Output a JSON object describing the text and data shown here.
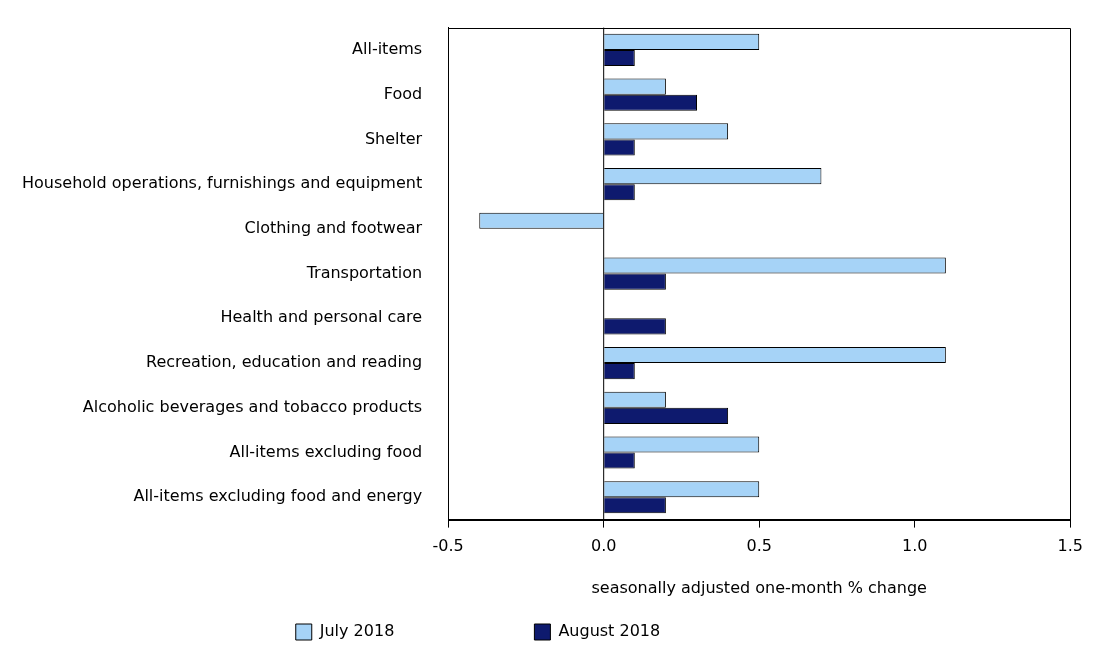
{
  "chart_data": {
    "type": "bar",
    "orientation": "horizontal",
    "xlabel": "seasonally adjusted one-month % change",
    "categories": [
      "All-items",
      "Food",
      "Shelter",
      "Household operations, furnishings and equipment",
      "Clothing and footwear",
      "Transportation",
      "Health and personal care",
      "Recreation, education and reading",
      "Alcoholic beverages and tobacco products",
      "All-items excluding food",
      "All-items excluding food and energy"
    ],
    "series": [
      {
        "name": "July 2018",
        "color": "#a6d3f7",
        "values": [
          0.5,
          0.2,
          0.4,
          0.7,
          -0.4,
          1.1,
          0.0,
          1.1,
          0.2,
          0.5,
          0.5
        ]
      },
      {
        "name": "August 2018",
        "color": "#0e1a6e",
        "values": [
          0.1,
          0.3,
          0.1,
          0.1,
          0.0,
          0.2,
          0.2,
          0.1,
          0.4,
          0.1,
          0.2
        ]
      }
    ],
    "xlim": [
      -0.5,
      1.5
    ],
    "xticks": [
      {
        "value": -0.5,
        "label": "-0.5"
      },
      {
        "value": 0,
        "label": "0.0"
      },
      {
        "value": 0.5,
        "label": "0.5"
      },
      {
        "value": 1,
        "label": "1.0"
      },
      {
        "value": 1.5,
        "label": "1.5"
      }
    ],
    "ref_lines": [
      {
        "axis": "x",
        "value": 0,
        "color": "#000000"
      }
    ],
    "grid": false,
    "legend": "bottom"
  }
}
